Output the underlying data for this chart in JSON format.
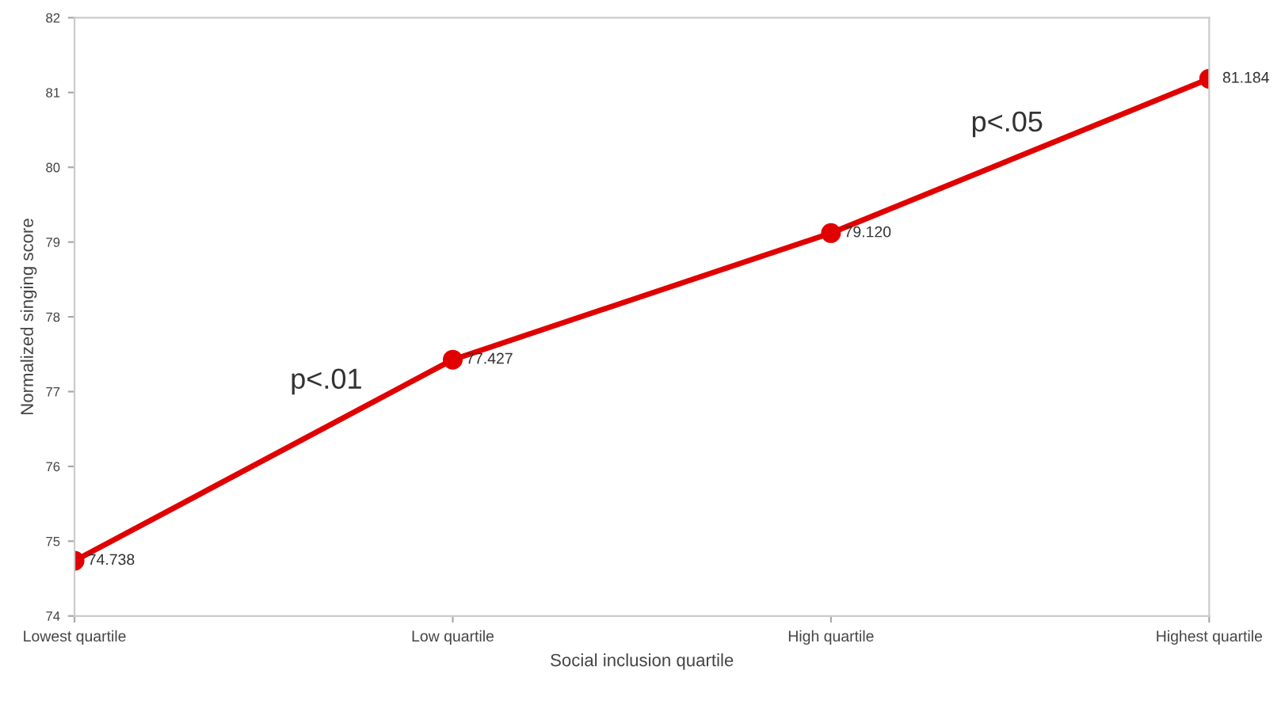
{
  "chart_data": {
    "type": "line",
    "xlabel": "Social inclusion quartile",
    "ylabel": "Normalized singing score",
    "categories": [
      "Lowest quartile",
      "Low quartile",
      "High quartile",
      "Highest quartile"
    ],
    "values": [
      74.738,
      77.427,
      79.12,
      81.184
    ],
    "value_labels": [
      "74.738",
      "77.427",
      "79.120",
      "81.184"
    ],
    "color": "#e00000",
    "marker": "circle",
    "line_style": "solid",
    "ylim": [
      74,
      82
    ],
    "yticks": [
      74,
      75,
      76,
      77,
      78,
      79,
      80,
      81,
      82
    ],
    "grid": false,
    "annotations": [
      "p<.01",
      "p<.05"
    ]
  }
}
